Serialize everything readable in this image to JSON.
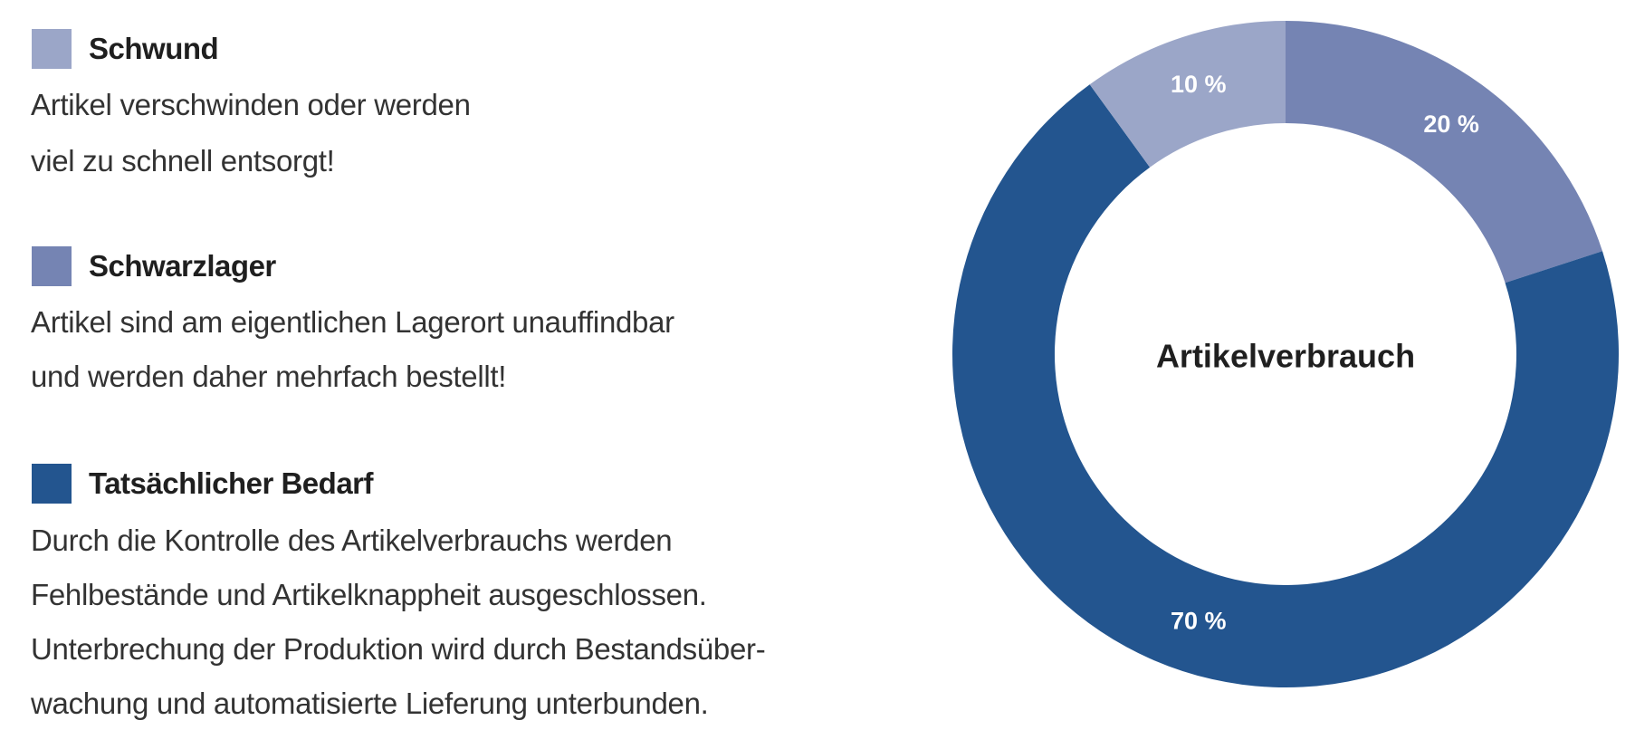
{
  "legend": [
    {
      "title": "Schwund",
      "color": "#9BA6C8",
      "lines": [
        "Artikel verschwinden oder werden",
        "viel zu schnell entsorgt!"
      ]
    },
    {
      "title": "Schwarzlager",
      "color": "#7584B3",
      "lines": [
        "Artikel sind am eigentlichen Lagerort unauffindbar",
        "und werden daher mehrfach bestellt!"
      ]
    },
    {
      "title": "Tatsächlicher Bedarf",
      "color": "#23558F",
      "lines": [
        "Durch die Kontrolle des Artikelverbrauchs werden",
        "Fehlbestände und Artikelknappheit ausgeschlossen.",
        "Unterbrechung der Produktion wird durch Bestandsüber-",
        "wachung und automatisierte Lieferung unterbunden."
      ]
    }
  ],
  "chart_data": {
    "type": "pie",
    "variant": "donut",
    "title": "Artikelverbrauch",
    "start": "top, clockwise",
    "slices": [
      {
        "name": "Schwarzlager",
        "value": 20,
        "label": "20 %",
        "color": "#7584B3"
      },
      {
        "name": "Tatsächlicher Bedarf",
        "value": 70,
        "label": "70 %",
        "color": "#23558F"
      },
      {
        "name": "Schwund",
        "value": 10,
        "label": "10 %",
        "color": "#9BA6C8"
      }
    ]
  }
}
